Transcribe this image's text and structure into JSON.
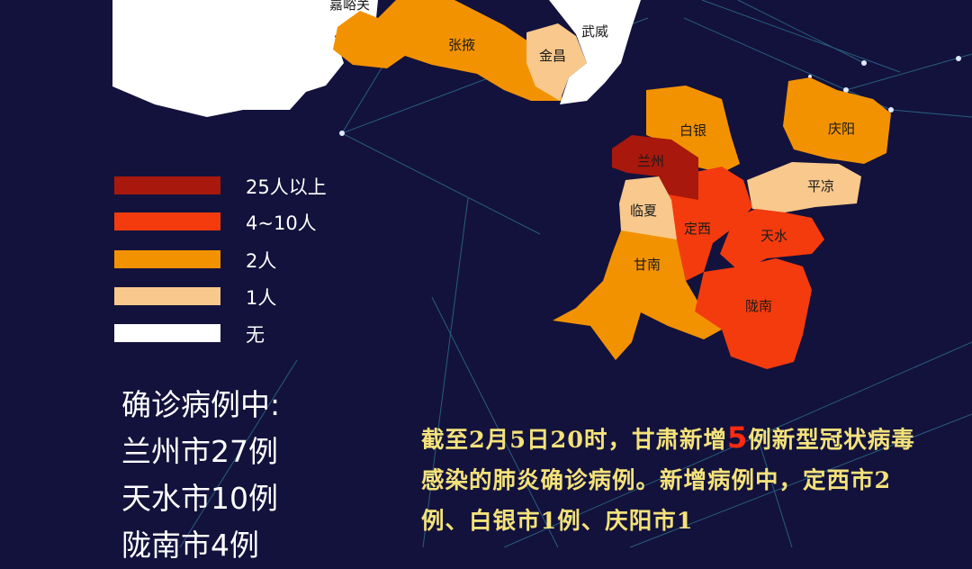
{
  "colors": {
    "background": "#13123c",
    "level_25_plus": "#a8180c",
    "level_4_10": "#f43b0e",
    "level_2": "#f39200",
    "level_1": "#f8c88c",
    "level_none": "#ffffff",
    "highlight": "#ff2a10",
    "news_text": "#f4e27a"
  },
  "map": {
    "regions": [
      {
        "name": "嘉峪关",
        "level": "none"
      },
      {
        "name": "张掖",
        "level": "2"
      },
      {
        "name": "金昌",
        "level": "1"
      },
      {
        "name": "武威",
        "level": "none"
      },
      {
        "name": "白银",
        "level": "2"
      },
      {
        "name": "兰州",
        "level": "25+"
      },
      {
        "name": "庆阳",
        "level": "2"
      },
      {
        "name": "平凉",
        "level": "1"
      },
      {
        "name": "临夏",
        "level": "1"
      },
      {
        "name": "定西",
        "level": "4-10"
      },
      {
        "name": "天水",
        "level": "4-10"
      },
      {
        "name": "甘南",
        "level": "2"
      },
      {
        "name": "陇南",
        "level": "4-10"
      }
    ]
  },
  "legend": [
    {
      "label": "25人以上",
      "color": "#a8180c"
    },
    {
      "label": "4~10人",
      "color": "#f43b0e"
    },
    {
      "label": "2人",
      "color": "#f39200"
    },
    {
      "label": "1人",
      "color": "#f8c88c"
    },
    {
      "label": "无",
      "color": "#ffffff"
    }
  ],
  "stats": {
    "heading": "确诊病例中:",
    "lines": [
      "兰州市27例",
      "天水市10例",
      "陇南市4例"
    ]
  },
  "news": {
    "part1": "截至2月5日20时，甘肃新增",
    "new_cases": "5",
    "part2": "例新型冠状病毒感染的肺炎确诊病例。新增病例中，定西市2例、白银市1例、庆阳市1"
  }
}
